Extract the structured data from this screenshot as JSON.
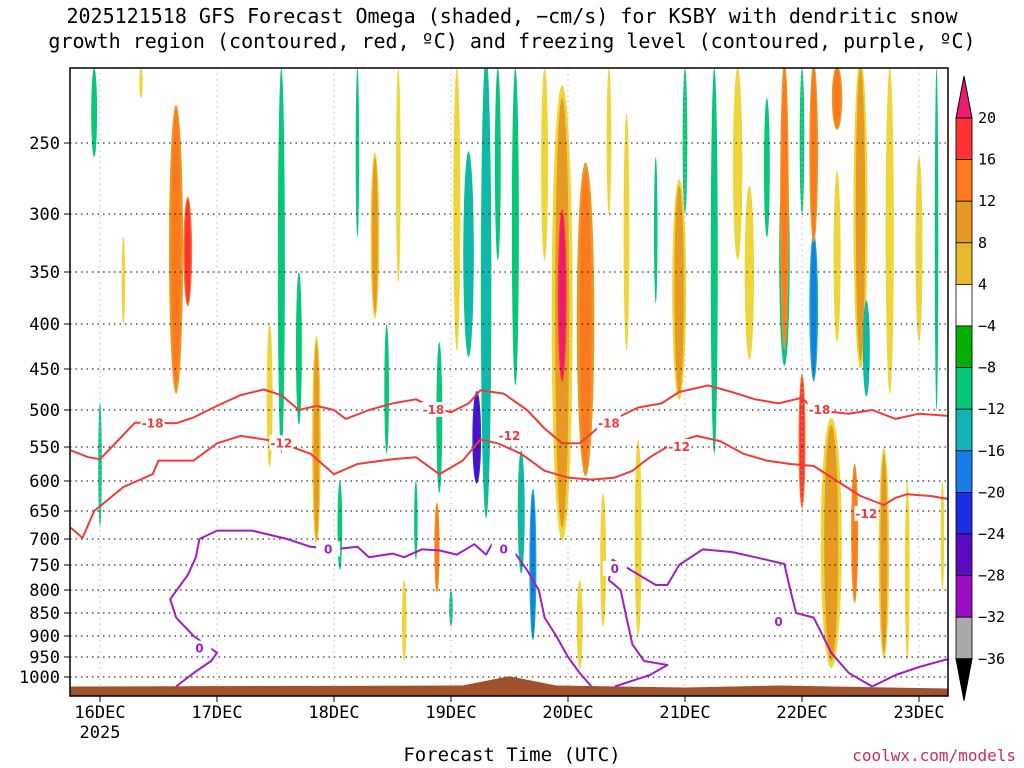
{
  "chart_data": {
    "type": "heatmap",
    "title_line1": "2025121518 GFS Forecast Omega (shaded, −cm/s) for KSBY with dendritic snow",
    "title_line2": "growth region (contoured, red, ºC) and freezing level (contoured, purple, ºC)",
    "xlabel": "Forecast Time (UTC)",
    "credit": "coolwx.com/models",
    "x_ticks": [
      {
        "label": "16DEC",
        "sub": "2025",
        "day": 0
      },
      {
        "label": "17DEC",
        "day": 1
      },
      {
        "label": "18DEC",
        "day": 2
      },
      {
        "label": "19DEC",
        "day": 3
      },
      {
        "label": "20DEC",
        "day": 4
      },
      {
        "label": "21DEC",
        "day": 5
      },
      {
        "label": "22DEC",
        "day": 6
      },
      {
        "label": "23DEC",
        "day": 7
      }
    ],
    "xlim_days": [
      -0.25,
      7.25
    ],
    "y_ticks": [
      250,
      300,
      350,
      400,
      450,
      500,
      550,
      600,
      650,
      700,
      750,
      800,
      850,
      900,
      950,
      1000
    ],
    "ylim_hPa": [
      200,
      1020
    ],
    "colorbar": {
      "labels": [
        "20",
        "16",
        "12",
        "8",
        "4",
        "−4",
        "−8",
        "−12",
        "−16",
        "−20",
        "−24",
        "−28",
        "−32",
        "−36"
      ],
      "colors": [
        "#ee1b72",
        "#ff3333",
        "#ff7a1f",
        "#e69a22",
        "#e8b92e",
        "#eed63a",
        "#ffffff",
        "#05b005",
        "#06c77a",
        "#12b4b4",
        "#1a7ce8",
        "#1a2ee6",
        "#5a0bc2",
        "#9b0fc2",
        "#a9a9a9",
        "#000000"
      ]
    },
    "contours": [
      {
        "name": "-18 C",
        "color": "#ef3b3b",
        "label": "-18",
        "points": [
          [
            -0.25,
            555
          ],
          [
            -0.1,
            565
          ],
          [
            0.0,
            568
          ],
          [
            0.1,
            550
          ],
          [
            0.3,
            517
          ],
          [
            0.65,
            518
          ],
          [
            0.8,
            510
          ],
          [
            1.0,
            495
          ],
          [
            1.2,
            482
          ],
          [
            1.4,
            475
          ],
          [
            1.55,
            482
          ],
          [
            1.7,
            500
          ],
          [
            1.85,
            495
          ],
          [
            2.0,
            500
          ],
          [
            2.1,
            512
          ],
          [
            2.3,
            500
          ],
          [
            2.5,
            492
          ],
          [
            2.7,
            487
          ],
          [
            2.85,
            497
          ],
          [
            3.0,
            503
          ],
          [
            3.15,
            492
          ],
          [
            3.25,
            476
          ],
          [
            3.45,
            480
          ],
          [
            3.65,
            500
          ],
          [
            3.8,
            525
          ],
          [
            3.95,
            545
          ],
          [
            4.1,
            545
          ],
          [
            4.25,
            525
          ],
          [
            4.4,
            512
          ],
          [
            4.6,
            497
          ],
          [
            4.8,
            492
          ],
          [
            4.95,
            478
          ],
          [
            5.2,
            470
          ],
          [
            5.4,
            478
          ],
          [
            5.6,
            487
          ],
          [
            5.8,
            492
          ],
          [
            6.0,
            485
          ],
          [
            6.1,
            500
          ],
          [
            6.4,
            505
          ],
          [
            6.6,
            500
          ],
          [
            6.8,
            512
          ],
          [
            7.0,
            505
          ],
          [
            7.25,
            508
          ]
        ]
      },
      {
        "name": "-12 C",
        "color": "#ef3b3b",
        "label": "-12",
        "points": [
          [
            -0.25,
            680
          ],
          [
            -0.15,
            698
          ],
          [
            -0.05,
            650
          ],
          [
            0.2,
            610
          ],
          [
            0.45,
            590
          ],
          [
            0.5,
            570
          ],
          [
            0.8,
            570
          ],
          [
            1.0,
            545
          ],
          [
            1.2,
            535
          ],
          [
            1.5,
            542
          ],
          [
            1.8,
            560
          ],
          [
            2.0,
            590
          ],
          [
            2.2,
            575
          ],
          [
            2.5,
            568
          ],
          [
            2.7,
            565
          ],
          [
            2.9,
            590
          ],
          [
            3.1,
            570
          ],
          [
            3.25,
            540
          ],
          [
            3.4,
            545
          ],
          [
            3.6,
            560
          ],
          [
            3.8,
            585
          ],
          [
            4.0,
            595
          ],
          [
            4.2,
            598
          ],
          [
            4.4,
            595
          ],
          [
            4.55,
            585
          ],
          [
            4.7,
            565
          ],
          [
            4.9,
            545
          ],
          [
            5.1,
            535
          ],
          [
            5.3,
            542
          ],
          [
            5.5,
            560
          ],
          [
            5.7,
            570
          ],
          [
            5.9,
            575
          ],
          [
            6.1,
            578
          ],
          [
            6.3,
            600
          ],
          [
            6.5,
            625
          ],
          [
            6.7,
            640
          ],
          [
            6.8,
            628
          ],
          [
            6.9,
            622
          ],
          [
            7.1,
            625
          ],
          [
            7.25,
            630
          ]
        ]
      },
      {
        "name": "0 C",
        "color": "#a01ec8",
        "label": "0",
        "points": [
          [
            0.65,
            1010
          ],
          [
            0.8,
            990
          ],
          [
            0.95,
            960
          ],
          [
            1.0,
            940
          ],
          [
            0.8,
            900
          ],
          [
            0.65,
            860
          ],
          [
            0.6,
            820
          ],
          [
            0.75,
            770
          ],
          [
            0.82,
            735
          ],
          [
            0.85,
            700
          ],
          [
            1.0,
            685
          ],
          [
            1.3,
            685
          ],
          [
            1.6,
            700
          ],
          [
            1.8,
            715
          ],
          [
            2.0,
            720
          ],
          [
            2.2,
            715
          ],
          [
            2.3,
            735
          ],
          [
            2.5,
            728
          ],
          [
            2.6,
            735
          ],
          [
            2.75,
            720
          ],
          [
            2.9,
            722
          ],
          [
            3.05,
            730
          ],
          [
            3.2,
            710
          ],
          [
            3.3,
            730
          ],
          [
            3.35,
            710
          ],
          [
            3.45,
            712
          ],
          [
            3.55,
            728
          ],
          [
            3.65,
            760
          ],
          [
            3.75,
            800
          ],
          [
            3.8,
            860
          ],
          [
            3.9,
            900
          ],
          [
            4.0,
            950
          ],
          [
            4.1,
            990
          ],
          [
            4.2,
            1010
          ]
        ]
      },
      {
        "name": "0 C east",
        "color": "#a01ec8",
        "label": "0",
        "points": [
          [
            4.4,
            1010
          ],
          [
            4.7,
            995
          ],
          [
            4.85,
            970
          ],
          [
            4.65,
            960
          ],
          [
            4.55,
            920
          ],
          [
            4.5,
            860
          ],
          [
            4.45,
            800
          ],
          [
            4.35,
            780
          ],
          [
            4.38,
            740
          ],
          [
            4.5,
            755
          ],
          [
            4.75,
            790
          ],
          [
            4.85,
            790
          ],
          [
            4.95,
            750
          ],
          [
            5.15,
            720
          ],
          [
            5.4,
            725
          ],
          [
            5.6,
            735
          ],
          [
            5.85,
            748
          ],
          [
            5.9,
            800
          ],
          [
            5.95,
            850
          ],
          [
            6.1,
            860
          ],
          [
            6.25,
            940
          ],
          [
            6.4,
            990
          ],
          [
            6.6,
            1010
          ]
        ]
      },
      {
        "name": "0 C southeast",
        "color": "#a01ec8",
        "label": "",
        "points": [
          [
            6.6,
            1010
          ],
          [
            6.8,
            995
          ],
          [
            7.0,
            975
          ],
          [
            7.25,
            955
          ]
        ]
      }
    ],
    "contour_labels": [
      {
        "text": "-18",
        "color": "#ef3b3b",
        "day": 0.45,
        "hPa": 518
      },
      {
        "text": "-18",
        "color": "#ef3b3b",
        "day": 2.85,
        "hPa": 500
      },
      {
        "text": "-18",
        "color": "#ef3b3b",
        "day": 4.35,
        "hPa": 518
      },
      {
        "text": "-18",
        "color": "#ef3b3b",
        "day": 6.15,
        "hPa": 500
      },
      {
        "text": "-12",
        "color": "#ef3b3b",
        "day": 1.55,
        "hPa": 545
      },
      {
        "text": "-12",
        "color": "#ef3b3b",
        "day": 3.5,
        "hPa": 535
      },
      {
        "text": "-12",
        "color": "#ef3b3b",
        "day": 4.95,
        "hPa": 550
      },
      {
        "text": "-12",
        "color": "#ef3b3b",
        "day": 6.55,
        "hPa": 655
      },
      {
        "text": "0",
        "color": "#a01ec8",
        "day": 0.85,
        "hPa": 930
      },
      {
        "text": "0",
        "color": "#a01ec8",
        "day": 1.95,
        "hPa": 720
      },
      {
        "text": "0",
        "color": "#a01ec8",
        "day": 3.45,
        "hPa": 720
      },
      {
        "text": "0",
        "color": "#a01ec8",
        "day": 4.4,
        "hPa": 758
      },
      {
        "text": "0",
        "color": "#a01ec8",
        "day": 5.8,
        "hPa": 870
      }
    ],
    "omega_features": [
      {
        "day": 0.65,
        "top": 230,
        "bottom": 470,
        "val": 12,
        "w": 0.08
      },
      {
        "day": 0.75,
        "top": 290,
        "bottom": 380,
        "val": 16,
        "w": 0.05
      },
      {
        "day": -0.05,
        "top": 150,
        "bottom": 260,
        "val": -8,
        "w": 0.05
      },
      {
        "day": 0.0,
        "top": 490,
        "bottom": 680,
        "val": -8,
        "w": 0.03
      },
      {
        "day": 1.45,
        "top": 400,
        "bottom": 580,
        "val": 4,
        "w": 0.05
      },
      {
        "day": 1.55,
        "top": 200,
        "bottom": 560,
        "val": -8,
        "w": 0.06
      },
      {
        "day": 1.7,
        "top": 350,
        "bottom": 520,
        "val": -8,
        "w": 0.05
      },
      {
        "day": 1.85,
        "top": 420,
        "bottom": 700,
        "val": 8,
        "w": 0.05
      },
      {
        "day": 2.05,
        "top": 600,
        "bottom": 760,
        "val": -8,
        "w": 0.04
      },
      {
        "day": 2.2,
        "top": 200,
        "bottom": 320,
        "val": -8,
        "w": 0.03
      },
      {
        "day": 2.35,
        "top": 260,
        "bottom": 390,
        "val": 8,
        "w": 0.05
      },
      {
        "day": 2.45,
        "top": 400,
        "bottom": 560,
        "val": -8,
        "w": 0.04
      },
      {
        "day": 2.55,
        "top": 200,
        "bottom": 360,
        "val": 4,
        "w": 0.04
      },
      {
        "day": 2.7,
        "top": 600,
        "bottom": 740,
        "val": -8,
        "w": 0.03
      },
      {
        "day": 2.9,
        "top": 420,
        "bottom": 620,
        "val": -8,
        "w": 0.05
      },
      {
        "day": 2.88,
        "top": 640,
        "bottom": 800,
        "val": 12,
        "w": 0.03
      },
      {
        "day": 3.05,
        "top": 200,
        "bottom": 430,
        "val": 4,
        "w": 0.06
      },
      {
        "day": 3.15,
        "top": 260,
        "bottom": 430,
        "val": -12,
        "w": 0.06
      },
      {
        "day": 3.22,
        "top": 480,
        "bottom": 600,
        "val": -24,
        "w": 0.05
      },
      {
        "day": 3.3,
        "top": 200,
        "bottom": 640,
        "val": -12,
        "w": 0.06
      },
      {
        "day": 3.4,
        "top": 200,
        "bottom": 340,
        "val": -8,
        "w": 0.05
      },
      {
        "day": 3.55,
        "top": 200,
        "bottom": 470,
        "val": -8,
        "w": 0.06
      },
      {
        "day": 3.6,
        "top": 560,
        "bottom": 760,
        "val": -12,
        "w": 0.04
      },
      {
        "day": 3.7,
        "top": 620,
        "bottom": 900,
        "val": -16,
        "w": 0.04
      },
      {
        "day": 3.8,
        "top": 200,
        "bottom": 340,
        "val": 4,
        "w": 0.06
      },
      {
        "day": 3.95,
        "top": 220,
        "bottom": 680,
        "val": 8,
        "w": 0.12
      },
      {
        "day": 3.95,
        "top": 300,
        "bottom": 460,
        "val": 20,
        "w": 0.05
      },
      {
        "day": 4.15,
        "top": 270,
        "bottom": 580,
        "val": 12,
        "w": 0.1
      },
      {
        "day": 4.35,
        "top": 200,
        "bottom": 300,
        "val": 4,
        "w": 0.04
      },
      {
        "day": 4.5,
        "top": 230,
        "bottom": 430,
        "val": 4,
        "w": 0.05
      },
      {
        "day": 4.3,
        "top": 620,
        "bottom": 880,
        "val": 4,
        "w": 0.05
      },
      {
        "day": 4.6,
        "top": 540,
        "bottom": 900,
        "val": 4,
        "w": 0.06
      },
      {
        "day": 4.75,
        "top": 260,
        "bottom": 380,
        "val": -8,
        "w": 0.03
      },
      {
        "day": 4.95,
        "top": 280,
        "bottom": 480,
        "val": 8,
        "w": 0.08
      },
      {
        "day": 5.0,
        "top": 200,
        "bottom": 300,
        "val": -8,
        "w": 0.04
      },
      {
        "day": 5.25,
        "top": 200,
        "bottom": 560,
        "val": -8,
        "w": 0.06
      },
      {
        "day": 5.45,
        "top": 200,
        "bottom": 340,
        "val": 4,
        "w": 0.08
      },
      {
        "day": 5.55,
        "top": 280,
        "bottom": 440,
        "val": 4,
        "w": 0.08
      },
      {
        "day": 5.7,
        "top": 220,
        "bottom": 320,
        "val": -8,
        "w": 0.05
      },
      {
        "day": 5.85,
        "top": 260,
        "bottom": 440,
        "val": -12,
        "w": 0.06
      },
      {
        "day": 5.85,
        "top": 200,
        "bottom": 420,
        "val": 12,
        "w": 0.05
      },
      {
        "day": 6.0,
        "top": 200,
        "bottom": 300,
        "val": -8,
        "w": 0.04
      },
      {
        "day": 6.1,
        "top": 320,
        "bottom": 460,
        "val": -16,
        "w": 0.05
      },
      {
        "day": 6.1,
        "top": 200,
        "bottom": 320,
        "val": 12,
        "w": 0.05
      },
      {
        "day": 6.0,
        "top": 460,
        "bottom": 640,
        "val": 16,
        "w": 0.04
      },
      {
        "day": 6.25,
        "top": 520,
        "bottom": 960,
        "val": 8,
        "w": 0.12
      },
      {
        "day": 6.3,
        "top": 200,
        "bottom": 240,
        "val": 12,
        "w": 0.06
      },
      {
        "day": 6.3,
        "top": 270,
        "bottom": 420,
        "val": 4,
        "w": 0.06
      },
      {
        "day": 6.45,
        "top": 580,
        "bottom": 820,
        "val": 12,
        "w": 0.04
      },
      {
        "day": 6.5,
        "top": 200,
        "bottom": 440,
        "val": 8,
        "w": 0.08
      },
      {
        "day": 6.55,
        "top": 380,
        "bottom": 480,
        "val": -12,
        "w": 0.04
      },
      {
        "day": 6.75,
        "top": 200,
        "bottom": 480,
        "val": 4,
        "w": 0.07
      },
      {
        "day": 6.7,
        "top": 560,
        "bottom": 940,
        "val": 8,
        "w": 0.06
      },
      {
        "day": 6.9,
        "top": 600,
        "bottom": 960,
        "val": 4,
        "w": 0.04
      },
      {
        "day": 7.0,
        "top": 260,
        "bottom": 420,
        "val": 4,
        "w": 0.06
      },
      {
        "day": 7.15,
        "top": 200,
        "bottom": 500,
        "val": -8,
        "w": 0.03
      },
      {
        "day": 7.2,
        "top": 600,
        "bottom": 800,
        "val": 4,
        "w": 0.03
      },
      {
        "day": 0.2,
        "top": 320,
        "bottom": 400,
        "val": 4,
        "w": 0.03
      },
      {
        "day": 0.35,
        "top": 200,
        "bottom": 220,
        "val": 4,
        "w": 0.03
      },
      {
        "day": 2.6,
        "top": 780,
        "bottom": 960,
        "val": 4,
        "w": 0.04
      },
      {
        "day": 3.0,
        "top": 800,
        "bottom": 880,
        "val": -8,
        "w": 0.03
      },
      {
        "day": 4.1,
        "top": 780,
        "bottom": 980,
        "val": 4,
        "w": 0.05
      }
    ],
    "terrain": {
      "color": "#a0522d",
      "top_hPa": 1010,
      "peak_day": 3.5,
      "peak_hPa": 998
    }
  }
}
